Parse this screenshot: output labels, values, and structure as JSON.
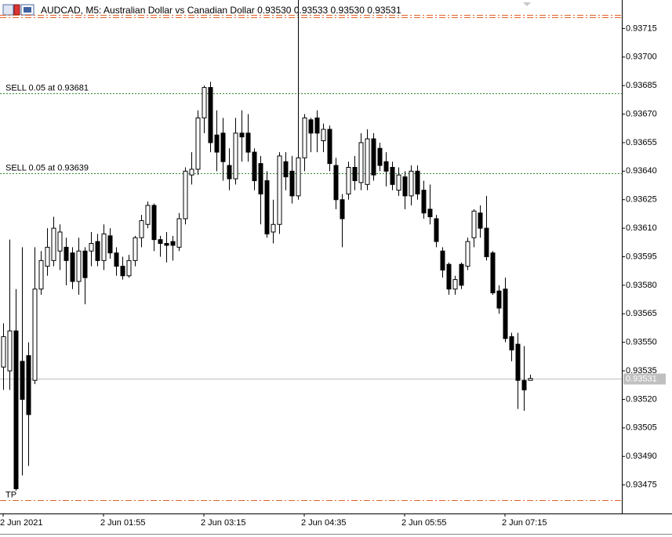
{
  "chart_data": {
    "type": "candlestick",
    "title": "AUDCAD, M5:  Australian Dollar vs Canadian Dollar  0.93530 0.93533 0.93530 0.93531",
    "categories": [
      "2 Jun 2021",
      null,
      null,
      null,
      null,
      null,
      null,
      null,
      null,
      null,
      null,
      null,
      null,
      null,
      null,
      null,
      "2 Jun 01:55",
      null,
      null,
      null,
      null,
      null,
      null,
      null,
      null,
      null,
      null,
      null,
      null,
      null,
      null,
      null,
      "2 Jun 03:15",
      null,
      null,
      null,
      null,
      null,
      null,
      null,
      null,
      null,
      null,
      null,
      null,
      null,
      null,
      null,
      "2 Jun 04:35",
      null,
      null,
      null,
      null,
      null,
      null,
      null,
      null,
      null,
      null,
      null,
      null,
      null,
      null,
      null,
      "2 Jun 05:55",
      null,
      null,
      null,
      null,
      null,
      null,
      null,
      null,
      null,
      null,
      null,
      null,
      null,
      null,
      null,
      "2 Jun 07:15",
      null,
      null,
      null,
      null
    ],
    "open": [
      0.93537,
      0.93535,
      0.93556,
      0.9354,
      0.93543,
      0.9353,
      0.93578,
      0.9359,
      0.93593,
      0.93598,
      0.936,
      0.93597,
      0.93582,
      0.93598,
      0.93598,
      0.93603,
      0.93593,
      0.93606,
      0.93597,
      0.9359,
      0.93585,
      0.93593,
      0.93605,
      0.93612,
      0.93622,
      0.93604,
      0.93602,
      0.93603,
      0.936,
      0.93615,
      0.93638,
      0.93641,
      0.93668,
      0.93684,
      0.93659,
      0.9366,
      0.93643,
      0.93636,
      0.9366,
      0.9366,
      0.9365,
      0.93644,
      0.93635,
      0.93608,
      0.93612,
      0.93645,
      0.9364,
      0.93627,
      0.93647,
      0.93667,
      0.93668,
      0.93656,
      0.93662,
      0.93643,
      0.93625,
      0.93628,
      0.93642,
      0.93634,
      0.93633,
      0.93657,
      0.93652,
      0.93645,
      0.93642,
      0.9363,
      0.93637,
      0.93627,
      0.9364,
      0.9363,
      0.9362,
      0.93615,
      0.93598,
      0.93591,
      0.93578,
      0.93591,
      0.9359,
      0.93605,
      0.93618,
      0.9361,
      0.93597,
      0.93577,
      0.93578,
      0.93553,
      0.93549,
      0.9353,
      0.9353
    ],
    "high": [
      0.9356,
      0.93604,
      0.93578,
      0.936,
      0.9355,
      0.936,
      0.93598,
      0.9361,
      0.93616,
      0.93612,
      0.93605,
      0.936,
      0.93605,
      0.936,
      0.93608,
      0.93607,
      0.93612,
      0.9361,
      0.936,
      0.93595,
      0.93596,
      0.93606,
      0.93617,
      0.93624,
      0.93623,
      0.93606,
      0.93608,
      0.93606,
      0.93618,
      0.93642,
      0.9365,
      0.93672,
      0.93685,
      0.93687,
      0.93672,
      0.93668,
      0.93652,
      0.93668,
      0.93672,
      0.9367,
      0.93652,
      0.93648,
      0.9364,
      0.93625,
      0.9365,
      0.9365,
      0.93648,
      0.93733,
      0.9367,
      0.93668,
      0.93672,
      0.93665,
      0.93664,
      0.93647,
      0.93628,
      0.93645,
      0.93648,
      0.9366,
      0.93662,
      0.9366,
      0.93655,
      0.9365,
      0.93645,
      0.93642,
      0.9364,
      0.93643,
      0.93643,
      0.93635,
      0.93633,
      0.93617,
      0.936,
      0.93592,
      0.93585,
      0.93592,
      0.93605,
      0.9362,
      0.93622,
      0.93627,
      0.93598,
      0.9358,
      0.93584,
      0.93555,
      0.93555,
      0.93548,
      0.93533
    ],
    "low": [
      0.93525,
      0.93525,
      0.93472,
      0.9348,
      0.93485,
      0.93528,
      0.93575,
      0.93585,
      0.9359,
      0.93588,
      0.9358,
      0.93578,
      0.93575,
      0.9357,
      0.9359,
      0.9359,
      0.93588,
      0.93594,
      0.93585,
      0.93583,
      0.93584,
      0.9359,
      0.936,
      0.9361,
      0.93598,
      0.93595,
      0.93592,
      0.93593,
      0.93598,
      0.93612,
      0.93633,
      0.93638,
      0.9366,
      0.9365,
      0.9364,
      0.93635,
      0.9363,
      0.93633,
      0.93645,
      0.93645,
      0.9363,
      0.93612,
      0.93605,
      0.93602,
      0.93607,
      0.9363,
      0.93623,
      0.93625,
      0.9364,
      0.9365,
      0.9365,
      0.9365,
      0.9364,
      0.9362,
      0.936,
      0.93625,
      0.9363,
      0.9363,
      0.9363,
      0.93635,
      0.9364,
      0.93632,
      0.9363,
      0.93627,
      0.9362,
      0.93622,
      0.93625,
      0.93615,
      0.93612,
      0.936,
      0.93584,
      0.93575,
      0.93575,
      0.93578,
      0.93588,
      0.936,
      0.93605,
      0.93593,
      0.93575,
      0.93565,
      0.9355,
      0.9354,
      0.93515,
      0.93514,
      0.9353
    ],
    "close": [
      0.93553,
      0.93556,
      0.93473,
      0.9352,
      0.93512,
      0.93578,
      0.93593,
      0.936,
      0.9361,
      0.93608,
      0.93593,
      0.93582,
      0.93598,
      0.93584,
      0.93602,
      0.93593,
      0.93607,
      0.93597,
      0.9359,
      0.93585,
      0.93593,
      0.93605,
      0.93614,
      0.93622,
      0.93604,
      0.93602,
      0.93601,
      0.93601,
      0.93615,
      0.9364,
      0.93641,
      0.93668,
      0.93684,
      0.93655,
      0.9365,
      0.93645,
      0.93636,
      0.9366,
      0.93658,
      0.9365,
      0.93635,
      0.93628,
      0.93607,
      0.93612,
      0.93648,
      0.93637,
      0.93627,
      0.93647,
      0.93668,
      0.9366,
      0.9366,
      0.93662,
      0.93644,
      0.93625,
      0.93615,
      0.93642,
      0.93635,
      0.93655,
      0.93657,
      0.93638,
      0.93643,
      0.9364,
      0.93633,
      0.93638,
      0.93627,
      0.9364,
      0.93628,
      0.93618,
      0.93616,
      0.93603,
      0.93588,
      0.93578,
      0.93583,
      0.9358,
      0.93603,
      0.93619,
      0.9361,
      0.93595,
      0.93576,
      0.93568,
      0.93552,
      0.93546,
      0.9353,
      0.93525,
      0.93531
    ],
    "ylim": [
      0.9346,
      0.9373
    ],
    "yticks": [
      {
        "value": 0.93475,
        "label": "0.93475"
      },
      {
        "value": 0.9349,
        "label": "0.93490"
      },
      {
        "value": 0.93505,
        "label": "0.93505"
      },
      {
        "value": 0.9352,
        "label": "0.93520"
      },
      {
        "value": 0.93535,
        "label": "0.93535"
      },
      {
        "value": 0.9355,
        "label": "0.93550"
      },
      {
        "value": 0.93565,
        "label": "0.93565"
      },
      {
        "value": 0.9358,
        "label": "0.93580"
      },
      {
        "value": 0.93595,
        "label": "0.93595"
      },
      {
        "value": 0.9361,
        "label": "0.93610"
      },
      {
        "value": 0.93625,
        "label": "0.93625"
      },
      {
        "value": 0.9364,
        "label": "0.93640"
      },
      {
        "value": 0.93655,
        "label": "0.93655"
      },
      {
        "value": 0.9367,
        "label": "0.93670"
      },
      {
        "value": 0.93685,
        "label": "0.93685"
      },
      {
        "value": 0.937,
        "label": "0.93700"
      },
      {
        "value": 0.93715,
        "label": "0.93715"
      }
    ],
    "price_lines": [
      {
        "label": "SELL 0.05 at 0.93681",
        "value": 0.93681,
        "color": "#2e8b2e",
        "style": "dotted"
      },
      {
        "label": "SELL 0.05 at 0.93639",
        "value": 0.93639,
        "color": "#2e8b2e",
        "style": "dotted"
      },
      {
        "value": 0.93722,
        "color": "#e0622a",
        "style": "dashdot"
      },
      {
        "value": 0.93721,
        "color": "#e0622a",
        "style": "dashdot"
      },
      {
        "label": "TP",
        "value": 0.93467,
        "color": "#e0622a",
        "style": "dashdot"
      }
    ],
    "last_price": {
      "value": 0.93531,
      "label": "0.93531",
      "color": "#c0c0c0"
    }
  }
}
